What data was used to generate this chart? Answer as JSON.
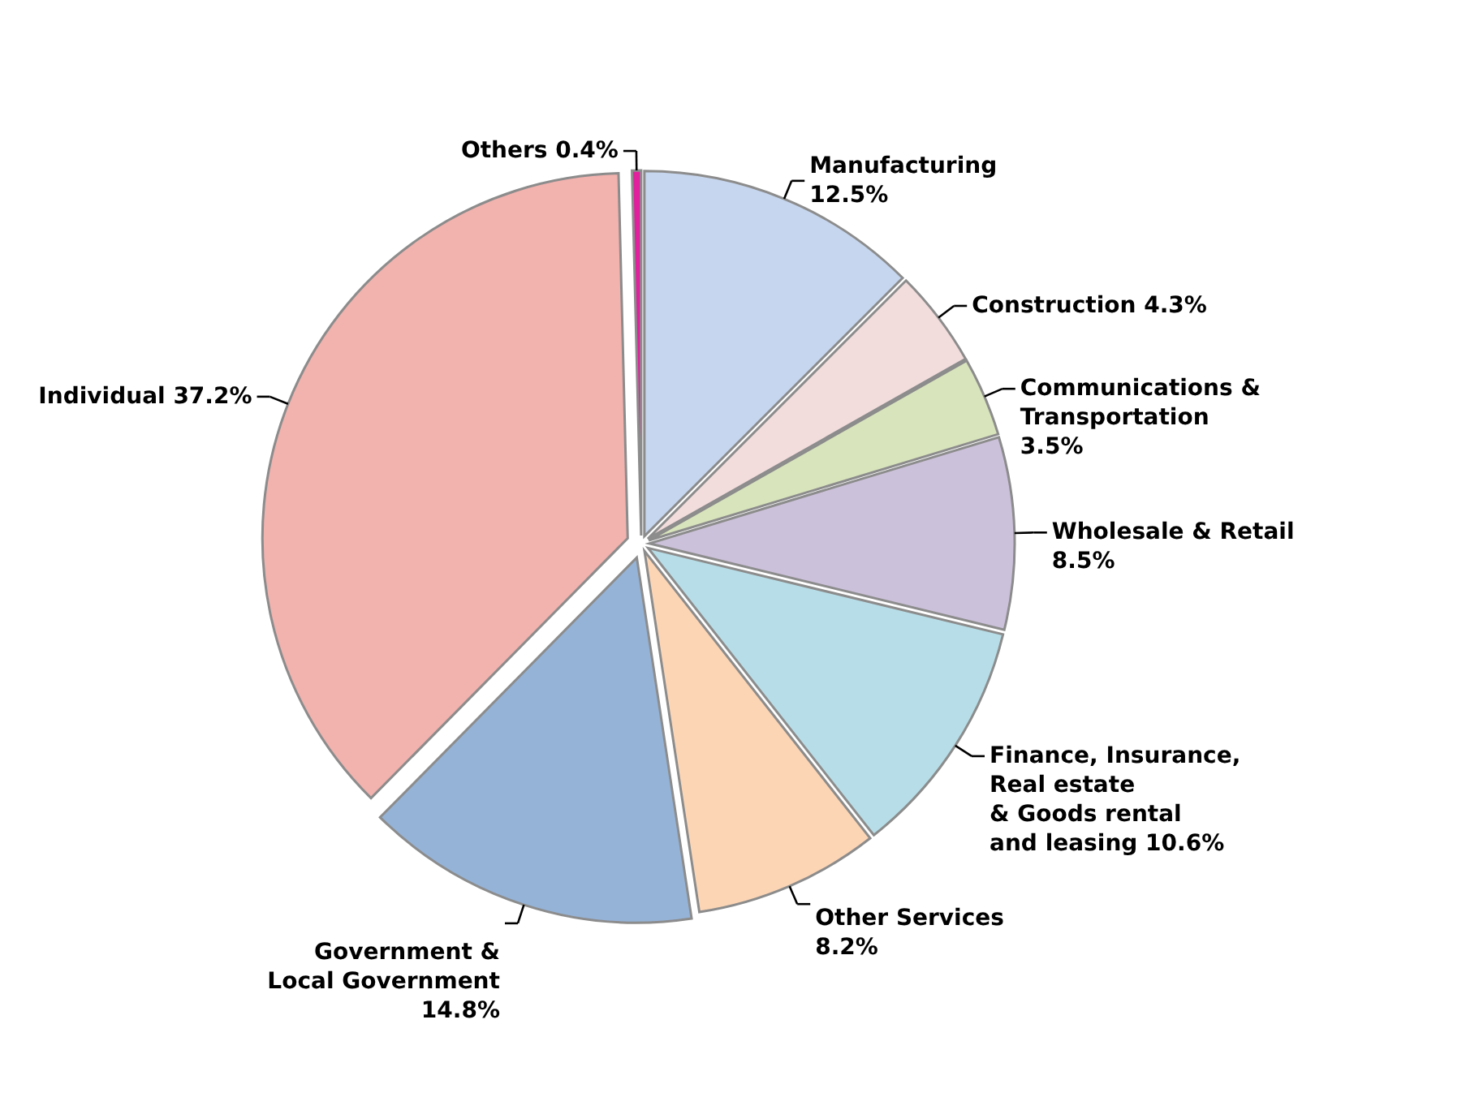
{
  "chart_data": {
    "type": "pie",
    "categories": [
      "Manufacturing",
      "Construction",
      "Communications & Transportation",
      "Wholesale & Retail",
      "Finance, Insurance, Real estate & Goods rental and leasing",
      "Other Services",
      "Government & Local Government",
      "Individual",
      "Others"
    ],
    "values": [
      12.5,
      4.3,
      3.5,
      8.5,
      10.6,
      8.2,
      14.8,
      37.2,
      0.4
    ],
    "colors": [
      "#c6d6ee",
      "#f2dcdc",
      "#d8e4bc",
      "#ccc1da",
      "#b7dee8",
      "#fcd5b5",
      "#95b3d7",
      "#f2b2ae",
      "#e0209c"
    ],
    "value_labels": [
      "12.5%",
      "4.3%",
      "3.5%",
      "8.5%",
      "10.6%",
      "8.2%",
      "14.8%",
      "37.2%",
      "0.4%"
    ]
  }
}
